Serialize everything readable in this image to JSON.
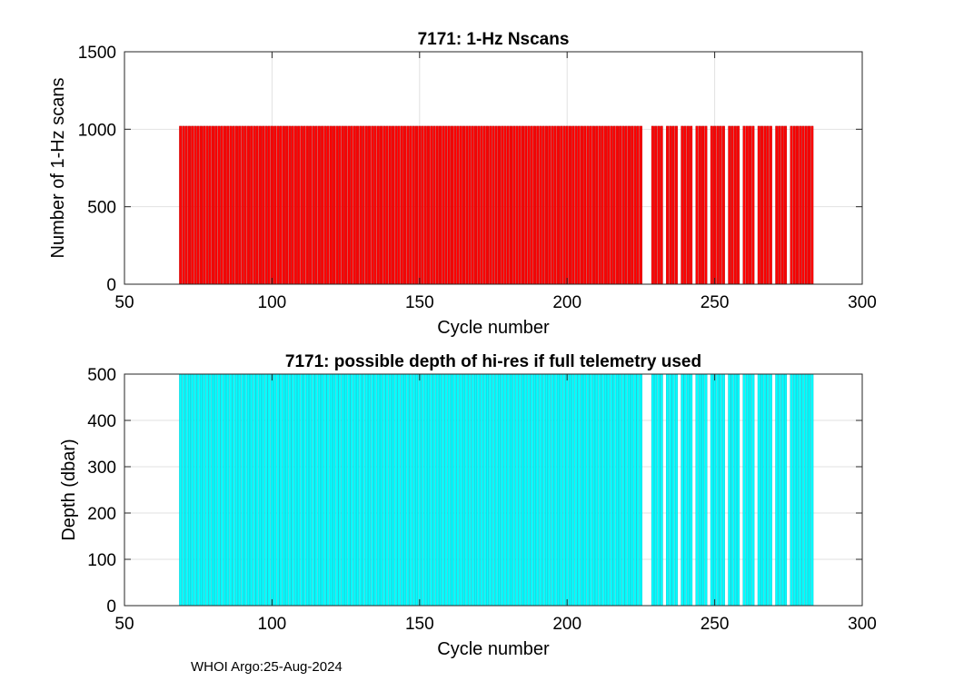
{
  "footer": "WHOI Argo:25-Aug-2024",
  "chart_data": [
    {
      "type": "bar",
      "title": "7171: 1-Hz Nscans",
      "xlabel": "Cycle number",
      "ylabel": "Number of 1-Hz scans",
      "xlim": [
        50,
        300
      ],
      "ylim": [
        0,
        1500
      ],
      "xticks": [
        50,
        100,
        150,
        200,
        250,
        300
      ],
      "yticks": [
        0,
        500,
        1000,
        1500
      ],
      "grid": true,
      "color": "#ff0000",
      "edge_color": "#b00000",
      "x_start": 69,
      "x_end": 283,
      "missing_cycles": [
        226,
        227,
        228,
        233,
        238,
        243,
        248,
        254,
        259,
        264,
        270,
        275
      ],
      "value": 1020
    },
    {
      "type": "bar",
      "title": "7171: possible depth of hi-res if full telemetry used",
      "xlabel": "Cycle number",
      "ylabel": "Depth (dbar)",
      "xlim": [
        50,
        300
      ],
      "ylim": [
        0,
        500
      ],
      "xticks": [
        50,
        100,
        150,
        200,
        250,
        300
      ],
      "yticks": [
        0,
        100,
        200,
        300,
        400,
        500
      ],
      "grid": true,
      "color": "#00ffff",
      "edge_color": "#00b8c8",
      "x_start": 69,
      "x_end": 283,
      "missing_cycles": [
        226,
        227,
        228,
        233,
        238,
        243,
        248,
        254,
        259,
        264,
        270,
        275
      ],
      "value": 500
    }
  ]
}
